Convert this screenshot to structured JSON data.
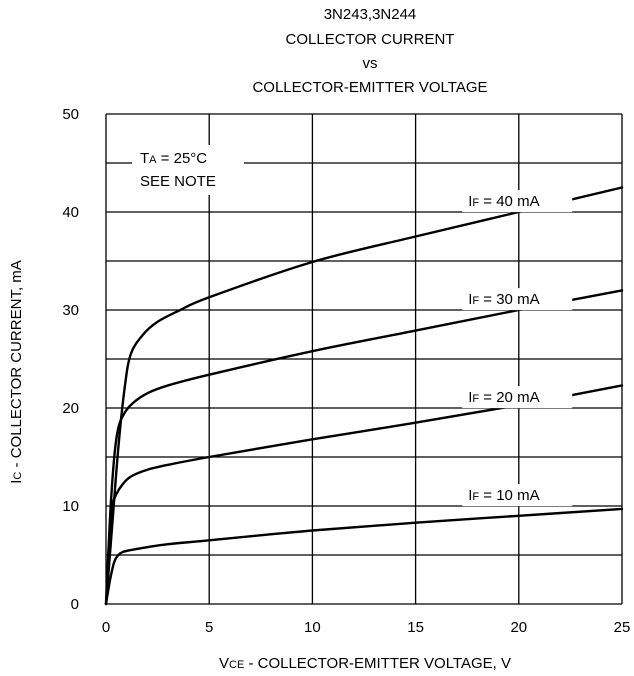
{
  "chart_data": {
    "type": "line",
    "title_lines": [
      "3N243,3N244",
      "COLLECTOR CURRENT",
      "vs",
      "COLLECTOR-EMITTER VOLTAGE"
    ],
    "xlabel": {
      "main": "V",
      "sub": "CE",
      "rest": " - COLLECTOR-EMITTER VOLTAGE, V"
    },
    "ylabel": {
      "main": "I",
      "sub": "C",
      "rest": " - COLLECTOR CURRENT, mA"
    },
    "xlim": [
      0,
      25
    ],
    "ylim": [
      0,
      50
    ],
    "xticks": [
      0,
      5,
      10,
      15,
      20,
      25
    ],
    "yticks": [
      0,
      10,
      20,
      30,
      40,
      50
    ],
    "xtick_labels": [
      "0",
      "5",
      "10",
      "15",
      "20",
      "25"
    ],
    "ytick_labels": [
      "0",
      "10",
      "20",
      "30",
      "40",
      "50"
    ],
    "grid": true,
    "annotation": {
      "line1": {
        "main": "T",
        "sub": "A",
        "rest": " = 25°C"
      },
      "line2": "SEE NOTE"
    },
    "series": [
      {
        "name": "IF = 10 mA",
        "label": {
          "main": "I",
          "sub": "F",
          "rest": " = 10 mA"
        },
        "x": [
          0,
          0.2,
          0.4,
          0.6,
          0.8,
          1.2,
          2,
          3,
          5,
          10,
          15,
          20,
          25
        ],
        "y": [
          0,
          2.5,
          4.3,
          5.0,
          5.3,
          5.5,
          5.8,
          6.1,
          6.5,
          7.5,
          8.3,
          9.0,
          9.7
        ]
      },
      {
        "name": "IF = 20 mA",
        "label": {
          "main": "I",
          "sub": "F",
          "rest": " = 20 mA"
        },
        "x": [
          0,
          0.2,
          0.3,
          0.5,
          0.8,
          1.2,
          2,
          3,
          5,
          10,
          15,
          20,
          25
        ],
        "y": [
          0,
          7.0,
          10.0,
          11.2,
          12.2,
          13.0,
          13.7,
          14.2,
          15.0,
          16.8,
          18.5,
          20.3,
          22.3
        ]
      },
      {
        "name": "IF = 30 mA",
        "label": {
          "main": "I",
          "sub": "F",
          "rest": " = 30 mA"
        },
        "x": [
          0,
          0.2,
          0.4,
          0.6,
          0.9,
          1.3,
          2,
          3,
          5,
          10,
          15,
          20,
          25
        ],
        "y": [
          0,
          9.0,
          15.0,
          18.0,
          19.5,
          20.5,
          21.5,
          22.3,
          23.4,
          25.8,
          27.9,
          30.0,
          32.0
        ]
      },
      {
        "name": "IF = 40 mA",
        "label": {
          "main": "I",
          "sub": "F",
          "rest": " = 40 mA"
        },
        "x": [
          0,
          0.3,
          0.6,
          0.9,
          1.2,
          1.8,
          2.5,
          3.5,
          5,
          10,
          15,
          20,
          25
        ],
        "y": [
          0,
          8.0,
          16.0,
          22.0,
          25.5,
          27.5,
          28.8,
          29.9,
          31.3,
          34.9,
          37.5,
          40.0,
          42.5
        ]
      }
    ]
  }
}
